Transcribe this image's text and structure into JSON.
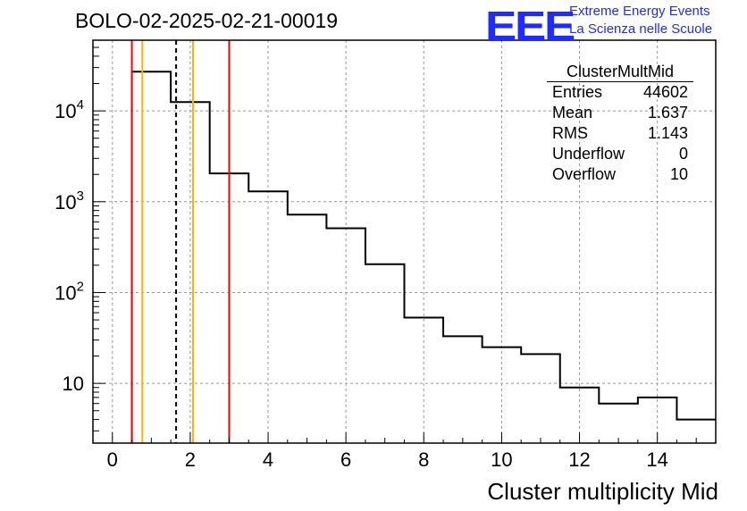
{
  "header": {
    "title": "BOLO-02-2025-02-21-00019",
    "logo_text": "EEE",
    "logo_line1": "Extreme Energy Events",
    "logo_line2": "La Scienza nelle Scuole"
  },
  "stats": {
    "title": "ClusterMultMid",
    "rows": [
      {
        "label": "Entries",
        "value": "44602"
      },
      {
        "label": "Mean",
        "value": "1.637"
      },
      {
        "label": "RMS",
        "value": "1.143"
      },
      {
        "label": "Underflow",
        "value": "0"
      },
      {
        "label": "Overflow",
        "value": "10"
      }
    ]
  },
  "chart_data": {
    "type": "histogram",
    "xlabel": "Cluster multiplicity Mid",
    "ylabel": "",
    "xlim": [
      -0.5,
      15.5
    ],
    "ylim": [
      2.2,
      60000
    ],
    "yscale": "log",
    "grid": true,
    "xticks": [
      0,
      2,
      4,
      6,
      8,
      10,
      12,
      14
    ],
    "xtick_labels": [
      "0",
      "2",
      "4",
      "6",
      "8",
      "10",
      "12",
      "14"
    ],
    "yticks": [
      10,
      100,
      1000,
      10000
    ],
    "ytick_labels": [
      {
        "base": "10",
        "exp": ""
      },
      {
        "base": "10",
        "exp": "2"
      },
      {
        "base": "10",
        "exp": "3"
      },
      {
        "base": "10",
        "exp": "4"
      }
    ],
    "bins": [
      {
        "x0": 0.5,
        "x1": 1.5,
        "value": 27000
      },
      {
        "x0": 1.5,
        "x1": 2.5,
        "value": 12500
      },
      {
        "x0": 2.5,
        "x1": 3.5,
        "value": 2050
      },
      {
        "x0": 3.5,
        "x1": 4.5,
        "value": 1300
      },
      {
        "x0": 4.5,
        "x1": 5.5,
        "value": 720
      },
      {
        "x0": 5.5,
        "x1": 6.5,
        "value": 510
      },
      {
        "x0": 6.5,
        "x1": 7.5,
        "value": 205
      },
      {
        "x0": 7.5,
        "x1": 8.5,
        "value": 53
      },
      {
        "x0": 8.5,
        "x1": 9.5,
        "value": 33
      },
      {
        "x0": 9.5,
        "x1": 10.5,
        "value": 25
      },
      {
        "x0": 10.5,
        "x1": 11.5,
        "value": 21
      },
      {
        "x0": 11.5,
        "x1": 12.5,
        "value": 9
      },
      {
        "x0": 12.5,
        "x1": 13.5,
        "value": 6
      },
      {
        "x0": 13.5,
        "x1": 14.5,
        "value": 7
      },
      {
        "x0": 14.5,
        "x1": 15.5,
        "value": 4
      }
    ],
    "vertical_lines": [
      {
        "x": 0.5,
        "color": "#ff0000",
        "style": "solid"
      },
      {
        "x": 0.77,
        "color": "#ffb000",
        "style": "solid"
      },
      {
        "x": 1.637,
        "color": "#000000",
        "style": "dashed"
      },
      {
        "x": 2.07,
        "color": "#ffb000",
        "style": "solid"
      },
      {
        "x": 3.0,
        "color": "#ff0000",
        "style": "solid"
      }
    ]
  }
}
